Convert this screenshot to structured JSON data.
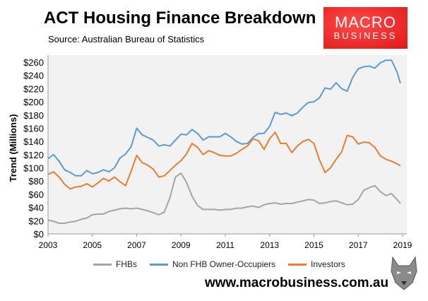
{
  "header": {
    "title": "ACT Housing Finance Breakdown",
    "subtitle": "Source: Australian Bureau of Statistics"
  },
  "logo": {
    "line1": "MACRO",
    "line2": "BUSINESS"
  },
  "footer": {
    "url": "www.macrobusiness.com.au"
  },
  "chart_data": {
    "type": "line",
    "title": "ACT Housing Finance Breakdown",
    "xlabel": "",
    "ylabel": "Trend (Millions)",
    "xlim": [
      2003,
      2019
    ],
    "ylim": [
      0,
      260
    ],
    "xticks": [
      "2003",
      "2005",
      "2007",
      "2009",
      "2011",
      "2013",
      "2015",
      "2017",
      "2019"
    ],
    "yticks": [
      "$0",
      "$20",
      "$40",
      "$60",
      "$80",
      "$100",
      "$120",
      "$140",
      "$160",
      "$180",
      "$200",
      "$220",
      "$240",
      "$260"
    ],
    "legend_position": "bottom",
    "grid": false,
    "x": [
      2003,
      2003.25,
      2003.5,
      2003.75,
      2004,
      2004.25,
      2004.5,
      2004.75,
      2005,
      2005.25,
      2005.5,
      2005.75,
      2006,
      2006.25,
      2006.5,
      2006.75,
      2007,
      2007.25,
      2007.5,
      2007.75,
      2008,
      2008.25,
      2008.5,
      2008.75,
      2009,
      2009.25,
      2009.5,
      2009.75,
      2010,
      2010.25,
      2010.5,
      2010.75,
      2011,
      2011.25,
      2011.5,
      2011.75,
      2012,
      2012.25,
      2012.5,
      2012.75,
      2013,
      2013.25,
      2013.5,
      2013.75,
      2014,
      2014.25,
      2014.5,
      2014.75,
      2015,
      2015.25,
      2015.5,
      2015.75,
      2016,
      2016.25,
      2016.5,
      2016.75,
      2017,
      2017.25,
      2017.5,
      2017.75,
      2018,
      2018.25,
      2018.5,
      2018.75,
      2018.9
    ],
    "series": [
      {
        "name": "FHBs",
        "color": "#a5a5a5",
        "values": [
          21,
          19,
          16,
          16,
          18,
          19,
          22,
          24,
          29,
          30,
          30,
          34,
          36,
          38,
          39,
          38,
          39,
          37,
          35,
          32,
          29,
          33,
          55,
          86,
          92,
          78,
          57,
          43,
          37,
          37,
          37,
          36,
          37,
          37,
          39,
          39,
          41,
          42,
          40,
          44,
          46,
          47,
          45,
          46,
          46,
          48,
          50,
          52,
          51,
          46,
          47,
          49,
          50,
          47,
          44,
          45,
          52,
          66,
          70,
          73,
          64,
          58,
          61,
          52,
          46
        ]
      },
      {
        "name": "Non FHB Owner-Occupiers",
        "color": "#5b9bd5",
        "values": [
          114,
          120,
          110,
          97,
          93,
          88,
          88,
          96,
          91,
          93,
          97,
          94,
          100,
          115,
          121,
          132,
          160,
          150,
          146,
          142,
          133,
          135,
          133,
          142,
          151,
          150,
          158,
          152,
          142,
          147,
          147,
          147,
          152,
          147,
          140,
          136,
          137,
          146,
          152,
          152,
          163,
          184,
          181,
          183,
          179,
          183,
          192,
          199,
          200,
          206,
          221,
          219,
          229,
          220,
          216,
          237,
          250,
          253,
          254,
          251,
          259,
          263,
          263,
          245,
          228
        ]
      },
      {
        "name": "Investors",
        "color": "#ed7d31",
        "values": [
          90,
          94,
          86,
          75,
          68,
          71,
          72,
          76,
          71,
          77,
          84,
          80,
          86,
          79,
          73,
          95,
          119,
          108,
          104,
          98,
          86,
          88,
          96,
          104,
          111,
          121,
          137,
          131,
          120,
          126,
          123,
          119,
          118,
          118,
          122,
          128,
          133,
          144,
          141,
          128,
          144,
          154,
          137,
          137,
          123,
          133,
          140,
          143,
          137,
          112,
          93,
          100,
          113,
          124,
          149,
          147,
          136,
          139,
          138,
          131,
          118,
          113,
          110,
          106,
          103
        ]
      }
    ]
  }
}
